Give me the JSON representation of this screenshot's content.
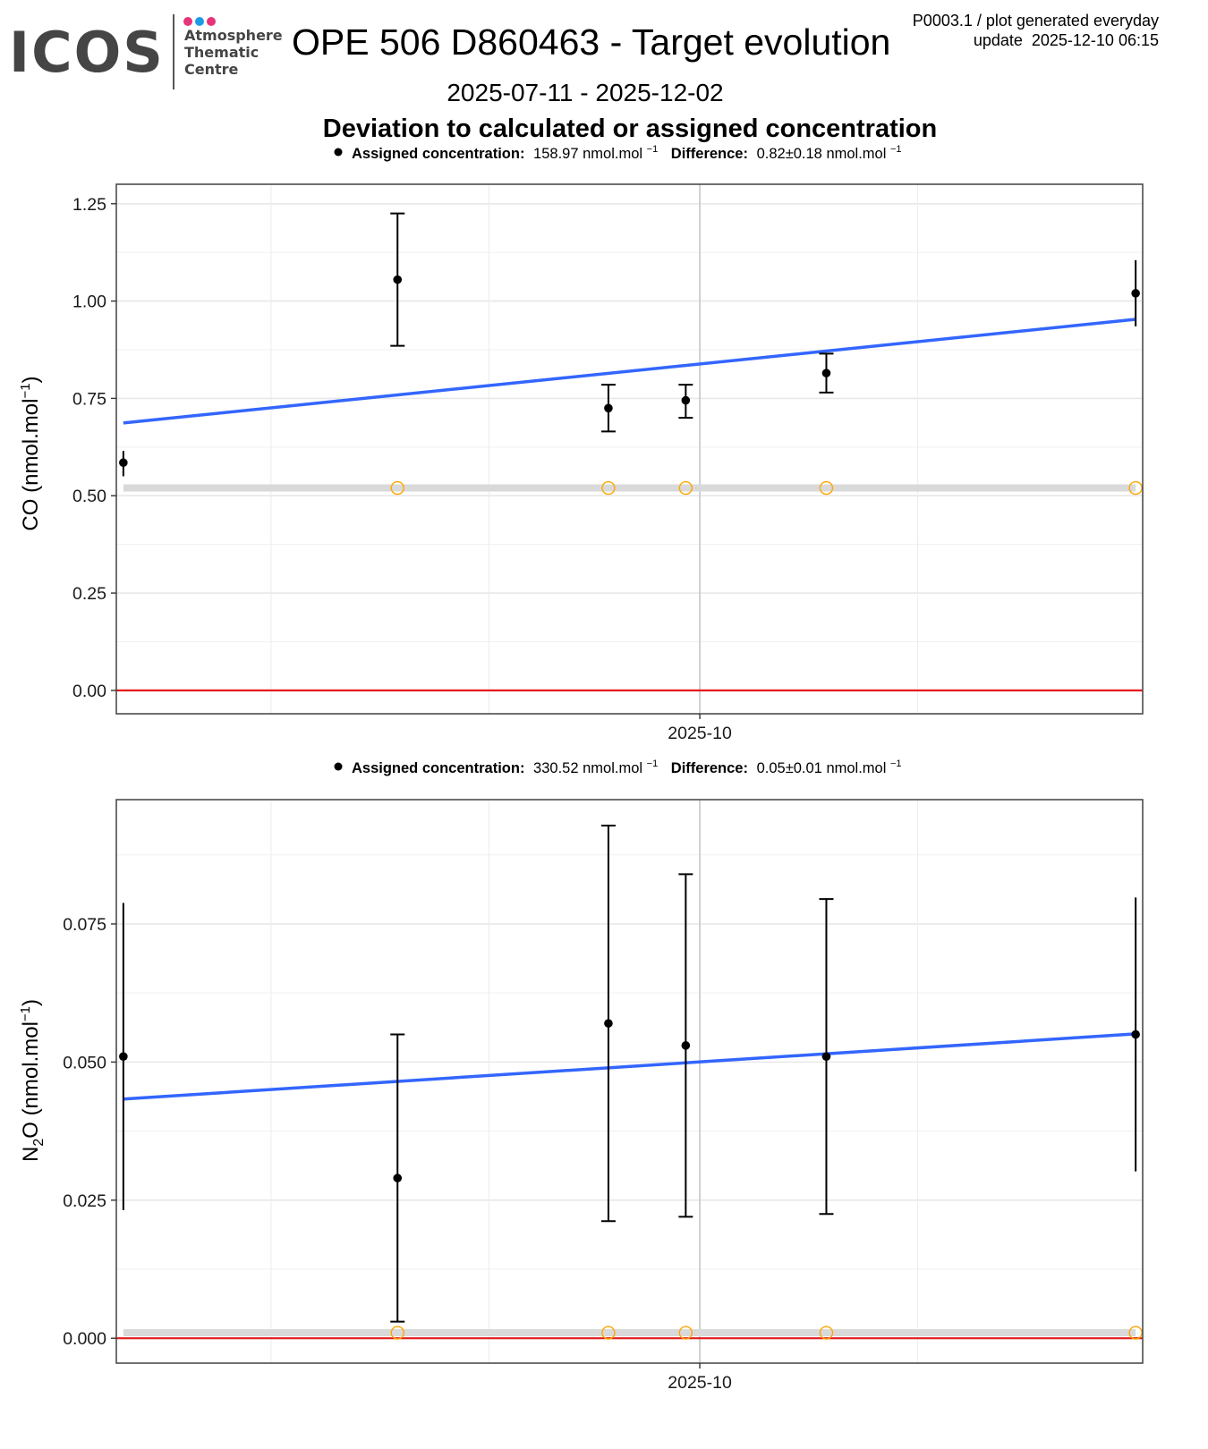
{
  "header": {
    "logo": {
      "name": "ICOS",
      "subtitle_lines": [
        "Atmosphere",
        "Thematic",
        "Centre"
      ],
      "dot_colors": [
        "#e6337a",
        "#1e9be6",
        "#e6337a"
      ]
    },
    "title": "OPE 506 D860463 - Target evolution",
    "meta_line1": "P0003.1 / plot generated everyday",
    "meta_line2": "update  2025-12-10 06:15",
    "date_range": "2025-07-11 - 2025-12-02",
    "section_title": "Deviation to calculated or assigned concentration"
  },
  "colors": {
    "trend": "#3366ff",
    "zero_line": "#e41a1c",
    "reference": "#ffa500",
    "band": "#d9d9d9",
    "points": "#000000"
  },
  "chart_data": [
    {
      "type": "scatter",
      "gas": "CO",
      "subtitle": {
        "assigned_label": "Assigned concentration:",
        "assigned_value": "158.97 nmol.mol",
        "difference_label": "Difference:",
        "difference_value": "0.82±0.18 nmol.mol",
        "unit_exp": "−1"
      },
      "ylabel": "CO (nmol.mol",
      "ylabel_exp": "−1",
      "ylabel_close": ")",
      "xlim": [
        "2025-07-10",
        "2025-12-03"
      ],
      "ylim": [
        -0.06,
        1.3
      ],
      "yticks": [
        0.0,
        0.25,
        0.5,
        0.75,
        1.0,
        1.25
      ],
      "ytick_labels": [
        "0.00",
        "0.25",
        "0.50",
        "0.75",
        "1.00",
        "1.25"
      ],
      "xticks": [
        {
          "date": "2025-10-01",
          "label": "2025-10"
        }
      ],
      "x_minor_grid": [
        "2025-08-01",
        "2025-09-01",
        "2025-11-01"
      ],
      "points": [
        {
          "date": "2025-07-11",
          "y": 0.585,
          "ymin": 0.55,
          "ymax": 0.615
        },
        {
          "date": "2025-08-19",
          "y": 1.055,
          "ymin": 0.885,
          "ymax": 1.225
        },
        {
          "date": "2025-09-18",
          "y": 0.725,
          "ymin": 0.665,
          "ymax": 0.785
        },
        {
          "date": "2025-09-29",
          "y": 0.745,
          "ymin": 0.7,
          "ymax": 0.785
        },
        {
          "date": "2025-10-19",
          "y": 0.815,
          "ymin": 0.765,
          "ymax": 0.865
        },
        {
          "date": "2025-12-02",
          "y": 1.02,
          "ymin": 0.935,
          "ymax": 1.105
        }
      ],
      "reference_points": [
        {
          "date": "2025-08-19",
          "y": 0.52
        },
        {
          "date": "2025-09-18",
          "y": 0.52
        },
        {
          "date": "2025-09-29",
          "y": 0.52
        },
        {
          "date": "2025-10-19",
          "y": 0.52
        },
        {
          "date": "2025-12-02",
          "y": 0.52
        }
      ],
      "band": {
        "y": 0.52,
        "x_from": "2025-07-11",
        "x_to": "2025-12-02"
      },
      "trend": {
        "from": {
          "date": "2025-07-11",
          "y": 0.687
        },
        "to": {
          "date": "2025-12-02",
          "y": 0.953
        }
      },
      "zero_line": 0.0
    },
    {
      "type": "scatter",
      "gas": "N2O",
      "subtitle": {
        "assigned_label": "Assigned concentration:",
        "assigned_value": "330.52 nmol.mol",
        "difference_label": "Difference:",
        "difference_value": "0.05±0.01 nmol.mol",
        "unit_exp": "−1"
      },
      "ylabel": "N",
      "ylabel_sub": "2",
      "ylabel_rest": "O (nmol.mol",
      "ylabel_exp": "−1",
      "ylabel_close": ")",
      "xlim": [
        "2025-07-10",
        "2025-12-03"
      ],
      "ylim": [
        -0.0045,
        0.0975
      ],
      "yticks": [
        0.0,
        0.025,
        0.05,
        0.075
      ],
      "ytick_labels": [
        "0.000",
        "0.025",
        "0.050",
        "0.075"
      ],
      "xticks": [
        {
          "date": "2025-10-01",
          "label": "2025-10"
        }
      ],
      "x_minor_grid": [
        "2025-08-01",
        "2025-09-01",
        "2025-11-01"
      ],
      "points": [
        {
          "date": "2025-07-11",
          "y": 0.051,
          "ymin": 0.0232,
          "ymax": 0.0788
        },
        {
          "date": "2025-08-19",
          "y": 0.029,
          "ymin": 0.003,
          "ymax": 0.055
        },
        {
          "date": "2025-09-18",
          "y": 0.057,
          "ymin": 0.0212,
          "ymax": 0.0928
        },
        {
          "date": "2025-09-29",
          "y": 0.053,
          "ymin": 0.022,
          "ymax": 0.084
        },
        {
          "date": "2025-10-19",
          "y": 0.051,
          "ymin": 0.0225,
          "ymax": 0.0795
        },
        {
          "date": "2025-12-02",
          "y": 0.055,
          "ymin": 0.0302,
          "ymax": 0.0798
        }
      ],
      "reference_points": [
        {
          "date": "2025-08-19",
          "y": 0.001
        },
        {
          "date": "2025-09-18",
          "y": 0.001
        },
        {
          "date": "2025-09-29",
          "y": 0.001
        },
        {
          "date": "2025-10-19",
          "y": 0.001
        },
        {
          "date": "2025-12-02",
          "y": 0.001
        }
      ],
      "band": {
        "y": 0.001,
        "x_from": "2025-07-11",
        "x_to": "2025-12-02"
      },
      "trend": {
        "from": {
          "date": "2025-07-11",
          "y": 0.0433
        },
        "to": {
          "date": "2025-12-02",
          "y": 0.0551
        }
      },
      "zero_line": 0.0
    }
  ]
}
